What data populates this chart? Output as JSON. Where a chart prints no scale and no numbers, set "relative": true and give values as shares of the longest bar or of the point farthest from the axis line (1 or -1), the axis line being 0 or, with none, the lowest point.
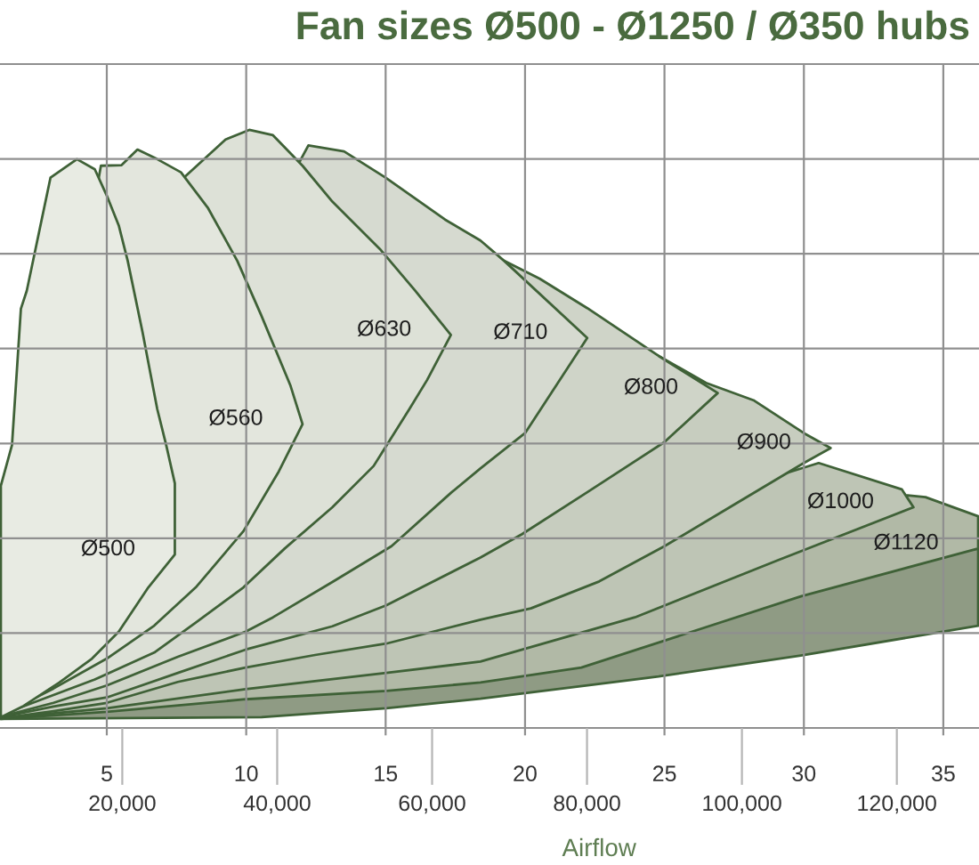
{
  "chart_data": {
    "type": "area",
    "title": "Fan sizes Ø500 - Ø1250 / Ø350 hubs",
    "xlabel": "Airflow",
    "relative": true,
    "xlim": [
      1.17,
      36.28
    ],
    "xticks": [
      5,
      10,
      15,
      20,
      25,
      30,
      35
    ],
    "x2lim": [
      4212,
      130608
    ],
    "x2ticks": [
      {
        "value": 20000,
        "label": "20,000"
      },
      {
        "value": 40000,
        "label": "40,000"
      },
      {
        "value": 60000,
        "label": "60,000"
      },
      {
        "value": 80000,
        "label": "80,000"
      },
      {
        "value": 100000,
        "label": "100,000"
      },
      {
        "value": 120000,
        "label": "120,000"
      }
    ],
    "ylim": [
      0,
      1.11
    ],
    "grid": true,
    "tick_labels": "x",
    "series": [
      {
        "name": "Ø500",
        "color": "#e8ebe3",
        "x": [
          1.2,
          2.02,
          3.3,
          4.47,
          5.43,
          6.49,
          7.44,
          7.44,
          7.13,
          6.81,
          6.28,
          5.75,
          5.43,
          5.0,
          4.57,
          3.93,
          2.98,
          2.13,
          1.92,
          1.6,
          1.2
        ],
        "values": [
          0.018,
          0.037,
          0.076,
          0.116,
          0.161,
          0.235,
          0.29,
          0.409,
          0.473,
          0.533,
          0.662,
          0.781,
          0.84,
          0.89,
          0.934,
          0.951,
          0.92,
          0.731,
          0.701,
          0.473,
          0.405
        ]
      },
      {
        "name": "Ø560",
        "color": "#e3e6dd",
        "x": [
          1.2,
          3.09,
          5.0,
          6.7,
          8.19,
          9.9,
          11.17,
          12.02,
          11.59,
          10.53,
          9.68,
          8.62,
          7.66,
          6.81,
          6.1,
          5.53,
          4.79
        ],
        "values": [
          0.021,
          0.066,
          0.116,
          0.171,
          0.235,
          0.329,
          0.429,
          0.508,
          0.572,
          0.691,
          0.781,
          0.87,
          0.929,
          0.951,
          0.967,
          0.941,
          0.94
        ]
      },
      {
        "name": "Ø630",
        "color": "#dde1d7",
        "x": [
          1.2,
          4.57,
          6.7,
          8.19,
          9.9,
          11.38,
          13.09,
          14.57,
          15.85,
          16.49,
          17.34,
          16.06,
          14.79,
          13.09,
          12.02,
          10.96,
          10.11,
          9.26,
          7.76
        ],
        "values": [
          0.022,
          0.081,
          0.126,
          0.176,
          0.235,
          0.3,
          0.369,
          0.438,
          0.533,
          0.582,
          0.657,
          0.731,
          0.801,
          0.88,
          0.94,
          0.991,
          1.0,
          0.984,
          0.92
        ]
      },
      {
        "name": "Ø710",
        "color": "#d6dad0",
        "x": [
          1.2,
          3.09,
          5.0,
          7.55,
          9.98,
          10.96,
          13.09,
          15.21,
          17.34,
          18.4,
          20.0,
          22.23,
          19.25,
          18.4,
          17.13,
          15.0,
          13.51,
          12.23
        ],
        "values": [
          0.019,
          0.042,
          0.071,
          0.119,
          0.161,
          0.185,
          0.244,
          0.304,
          0.393,
          0.434,
          0.493,
          0.652,
          0.781,
          0.815,
          0.85,
          0.92,
          0.964,
          0.974
        ]
      },
      {
        "name": "Ø800",
        "color": "#cfd4c8",
        "x": [
          1.2,
          3.09,
          5.0,
          7.55,
          9.98,
          13.09,
          15.02,
          18.4,
          19.89,
          22.23,
          25.0,
          26.91,
          24.79,
          22.23,
          20.53,
          19.25
        ],
        "values": [
          0.018,
          0.036,
          0.051,
          0.092,
          0.131,
          0.17,
          0.205,
          0.285,
          0.324,
          0.394,
          0.478,
          0.56,
          0.622,
          0.702,
          0.751,
          0.781
        ]
      },
      {
        "name": "Ø900",
        "color": "#c7cdbf",
        "x": [
          1.2,
          3.09,
          5.0,
          7.55,
          9.98,
          12.47,
          15.02,
          18.4,
          20.21,
          22.66,
          25.0,
          27.34,
          30.0,
          30.96,
          30.0,
          28.19,
          26.49,
          24.79
        ],
        "values": [
          0.016,
          0.028,
          0.042,
          0.077,
          0.101,
          0.122,
          0.141,
          0.181,
          0.2,
          0.245,
          0.304,
          0.369,
          0.443,
          0.468,
          0.493,
          0.548,
          0.577,
          0.622
        ]
      },
      {
        "name": "Ø1000",
        "color": "#bec5b5",
        "x": [
          1.2,
          5.0,
          9.98,
          15.02,
          18.4,
          23.94,
          29.05,
          33.93,
          33.51,
          30.53
        ],
        "values": [
          0.016,
          0.033,
          0.065,
          0.092,
          0.111,
          0.185,
          0.28,
          0.369,
          0.399,
          0.443
        ]
      },
      {
        "name": "Ø1120",
        "color": "#b1b9a6",
        "x": [
          1.2,
          5.0,
          9.98,
          15.02,
          18.4,
          22.02,
          29.89,
          36.25,
          36.25,
          34.36,
          33.72
        ],
        "values": [
          0.015,
          0.027,
          0.048,
          0.062,
          0.076,
          0.101,
          0.22,
          0.3,
          0.354,
          0.386,
          0.389
        ]
      },
      {
        "color": "#8f9b84",
        "x": [
          1.2,
          10.55,
          15.02,
          18.4,
          24.79,
          29.89,
          36.25,
          36.25
        ],
        "values": [
          0.015,
          0.018,
          0.033,
          0.049,
          0.086,
          0.121,
          0.171,
          0.3
        ]
      }
    ]
  }
}
